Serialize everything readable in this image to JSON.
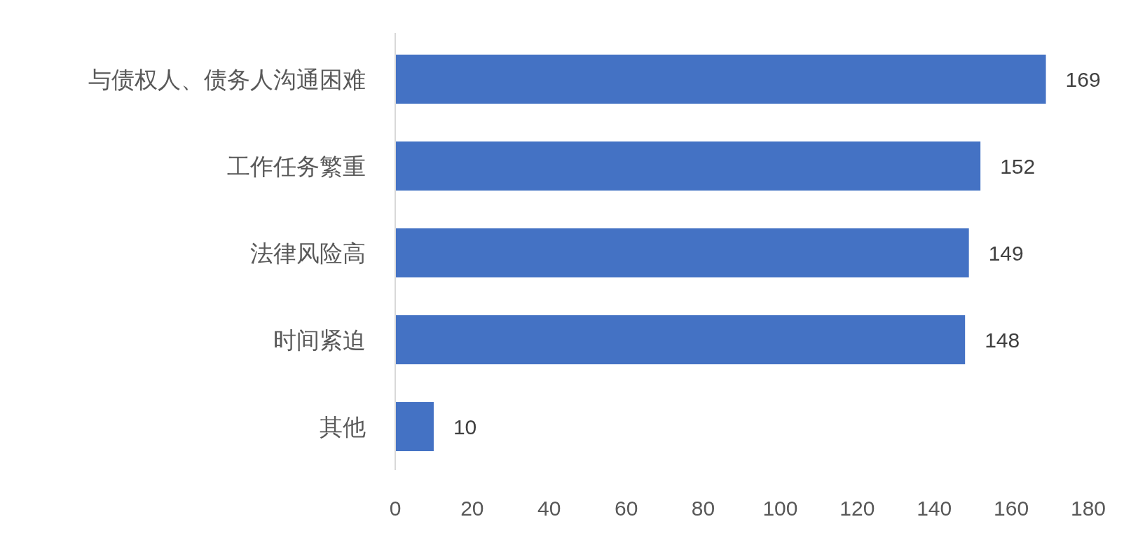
{
  "chart_data": {
    "type": "bar",
    "orientation": "horizontal",
    "categories": [
      "与债权人、债务人沟通困难",
      "工作任务繁重",
      "法律风险高",
      "时间紧迫",
      "其他"
    ],
    "values": [
      169,
      152,
      149,
      148,
      10
    ],
    "color": "#4472c4",
    "xlim": [
      0,
      180
    ],
    "xticks": [
      0,
      20,
      40,
      60,
      80,
      100,
      120,
      140,
      160,
      180
    ],
    "data_labels": true,
    "grid": false
  }
}
